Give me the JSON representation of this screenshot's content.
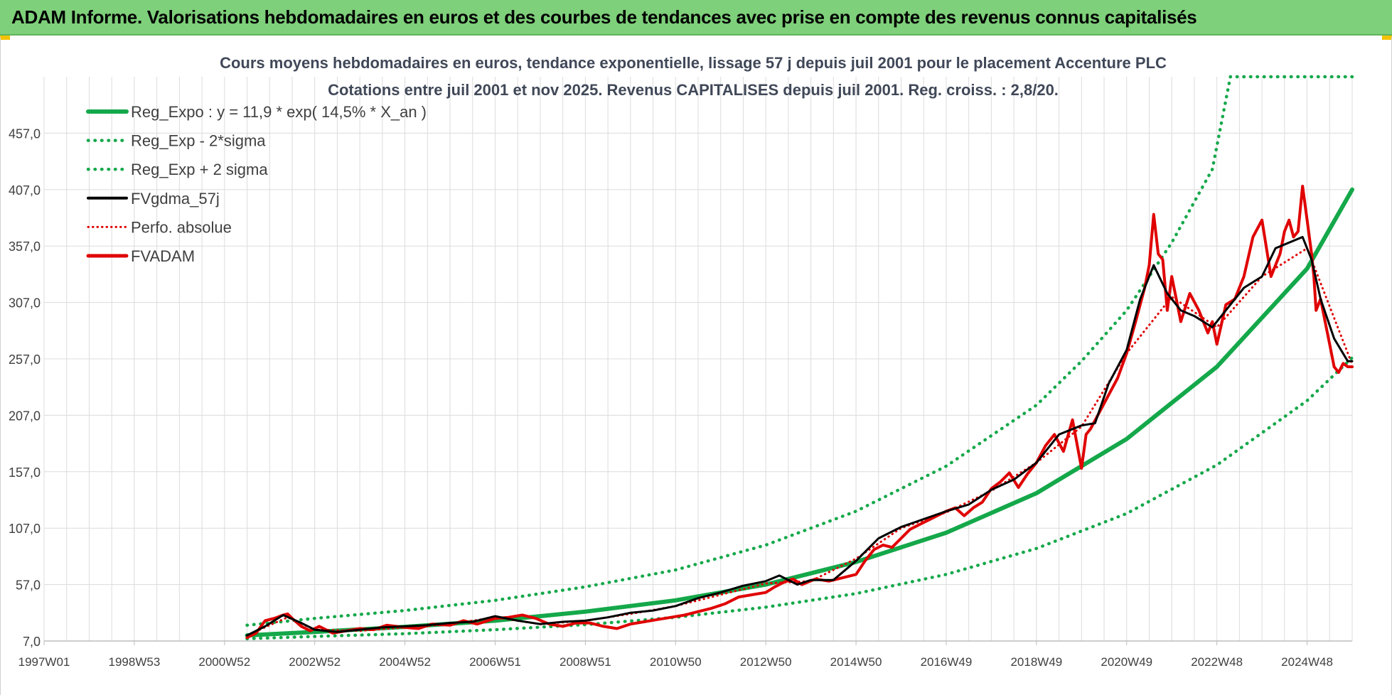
{
  "banner": {
    "title": "ADAM Informe. Valorisations hebdomadaires en euros et des courbes de tendances avec prise en compte des revenus connus capitalisés"
  },
  "colors": {
    "banner_bg": "#7ed07a",
    "trend": "#14a84a",
    "sigma": "#14a84a",
    "fvgdma": "#000000",
    "perfo": "#e00000",
    "fvadam": "#e00000",
    "grid": "#dcdcdc"
  },
  "chart_data": {
    "type": "line",
    "title": "Cours moyens hebdomadaires en euros, tendance exponentielle, lissage 57 j depuis juil 2001 pour le placement Accenture PLC",
    "subtitle": "Cotations entre juil 2001 et nov 2025. Revenus CAPITALISES depuis juil 2001. Reg. croiss. : 2,8/20.",
    "xlabel": "",
    "ylabel": "",
    "xlim": [
      1997.0,
      2026.0
    ],
    "ylim": [
      7.0,
      507.0
    ],
    "y_ticks": [
      "7,0",
      "57,0",
      "107,0",
      "157,0",
      "207,0",
      "257,0",
      "307,0",
      "357,0",
      "407,0",
      "457,0"
    ],
    "x_ticks": [
      {
        "label": "1997W01",
        "x": 1997.0
      },
      {
        "label": "1998W53",
        "x": 1999.0
      },
      {
        "label": "2000W52",
        "x": 2001.0
      },
      {
        "label": "2002W52",
        "x": 2003.0
      },
      {
        "label": "2004W52",
        "x": 2005.0
      },
      {
        "label": "2006W51",
        "x": 2007.0
      },
      {
        "label": "2008W51",
        "x": 2009.0
      },
      {
        "label": "2010W50",
        "x": 2011.0
      },
      {
        "label": "2012W50",
        "x": 2013.0
      },
      {
        "label": "2014W50",
        "x": 2015.0
      },
      {
        "label": "2016W49",
        "x": 2017.0
      },
      {
        "label": "2018W49",
        "x": 2019.0
      },
      {
        "label": "2020W49",
        "x": 2021.0
      },
      {
        "label": "2022W48",
        "x": 2023.0
      },
      {
        "label": "2024W48",
        "x": 2025.0
      }
    ],
    "legend": [
      {
        "key": "reg_expo",
        "label": "Reg_Expo : y = 11,9 * exp( 14,5% *  X_an )"
      },
      {
        "key": "reg_minus",
        "label": "Reg_Exp - 2*sigma"
      },
      {
        "key": "reg_plus",
        "label": "Reg_Exp + 2 sigma"
      },
      {
        "key": "fvgdma",
        "label": "FVgdma_57j"
      },
      {
        "key": "perfo",
        "label": "Perfo. absolue"
      },
      {
        "key": "fvadam",
        "label": "FVADAM"
      }
    ],
    "series": [
      {
        "name": "Reg_Expo",
        "style": "solid",
        "x": [
          2001.5,
          2003,
          2005,
          2007,
          2009,
          2011,
          2013,
          2015,
          2017,
          2019,
          2021,
          2023,
          2025,
          2026
        ],
        "y": [
          12,
          15,
          19.5,
          25,
          33,
          43,
          57,
          77,
          103,
          138,
          186,
          250,
          337,
          407
        ]
      },
      {
        "name": "Reg_Exp - 2*sigma",
        "style": "dotted",
        "x": [
          2001.5,
          2003,
          2005,
          2007,
          2009,
          2011,
          2013,
          2015,
          2017,
          2019,
          2021,
          2023,
          2025,
          2026
        ],
        "y": [
          9,
          11,
          13.5,
          17,
          21.5,
          28,
          37,
          49,
          66,
          89,
          120,
          163,
          220,
          258
        ]
      },
      {
        "name": "Reg_Exp + 2 sigma",
        "style": "dotted",
        "x": [
          2001.5,
          2003,
          2005,
          2007,
          2009,
          2011,
          2013,
          2015,
          2017,
          2019,
          2020,
          2021,
          2022,
          2022.9,
          2023.3,
          2026
        ],
        "y": [
          21,
          27,
          34,
          43,
          55,
          70,
          92,
          122,
          162,
          216,
          255,
          300,
          360,
          425,
          507,
          507
        ]
      },
      {
        "name": "FVgdma_57j",
        "style": "solid",
        "x": [
          2001.5,
          2001.9,
          2002.3,
          2002.7,
          2003.0,
          2003.5,
          2004.0,
          2004.5,
          2005.0,
          2005.5,
          2006.0,
          2006.5,
          2007.0,
          2007.5,
          2008.0,
          2008.5,
          2009.0,
          2009.5,
          2010.0,
          2010.5,
          2011.0,
          2011.5,
          2012.0,
          2012.5,
          2013.0,
          2013.3,
          2013.7,
          2014.0,
          2014.5,
          2015.0,
          2015.5,
          2016.0,
          2016.5,
          2017.0,
          2017.5,
          2018.0,
          2018.5,
          2019.0,
          2019.5,
          2020.0,
          2020.3,
          2020.6,
          2021.0,
          2021.3,
          2021.6,
          2021.9,
          2022.2,
          2022.5,
          2022.9,
          2023.2,
          2023.6,
          2024.0,
          2024.3,
          2024.6,
          2024.9,
          2025.1,
          2025.3,
          2025.6,
          2025.9,
          2026.0
        ],
        "y": [
          12,
          20,
          30,
          23,
          17,
          15,
          17,
          19,
          20,
          21,
          23,
          24,
          29,
          25,
          22,
          24,
          25,
          28,
          32,
          34,
          38,
          45,
          50,
          56,
          60,
          65,
          57,
          61,
          61,
          78,
          98,
          108,
          115,
          122,
          128,
          141,
          150,
          165,
          190,
          198,
          200,
          235,
          265,
          310,
          340,
          315,
          300,
          295,
          285,
          300,
          320,
          330,
          355,
          360,
          365,
          345,
          310,
          275,
          255,
          255
        ]
      },
      {
        "name": "Perfo. absolue",
        "style": "dotted",
        "x": [
          2001.5,
          2002.0,
          2002.4,
          2003.0,
          2004.0,
          2005.0,
          2006.0,
          2007.0,
          2008.0,
          2009.0,
          2010.0,
          2011.0,
          2012.0,
          2013.0,
          2014.0,
          2015.0,
          2016.0,
          2017.0,
          2018.0,
          2019.0,
          2020.0,
          2021.0,
          2022.0,
          2023.0,
          2024.0,
          2025.0,
          2026.0
        ],
        "y": [
          12,
          21,
          28,
          17,
          16,
          19,
          22,
          28,
          22,
          25,
          31,
          38,
          48,
          58,
          60,
          80,
          107,
          121,
          140,
          165,
          197,
          262,
          312,
          285,
          330,
          355,
          252
        ]
      },
      {
        "name": "FVADAM",
        "style": "solid",
        "x": [
          2001.5,
          2001.7,
          2001.9,
          2002.1,
          2002.3,
          2002.4,
          2002.5,
          2002.7,
          2002.9,
          2003.1,
          2003.4,
          2003.7,
          2004.0,
          2004.3,
          2004.6,
          2005.0,
          2005.3,
          2005.6,
          2006.0,
          2006.3,
          2006.6,
          2007.0,
          2007.3,
          2007.6,
          2007.9,
          2008.2,
          2008.5,
          2008.8,
          2009.1,
          2009.4,
          2009.7,
          2010.0,
          2010.3,
          2010.6,
          2010.9,
          2011.2,
          2011.5,
          2011.8,
          2012.1,
          2012.4,
          2012.7,
          2013.0,
          2013.2,
          2013.4,
          2013.6,
          2013.8,
          2014.1,
          2014.4,
          2014.7,
          2015.0,
          2015.2,
          2015.4,
          2015.6,
          2015.8,
          2016.0,
          2016.2,
          2016.4,
          2016.6,
          2016.8,
          2017.0,
          2017.2,
          2017.4,
          2017.6,
          2017.8,
          2018.0,
          2018.2,
          2018.4,
          2018.6,
          2018.8,
          2019.0,
          2019.2,
          2019.4,
          2019.6,
          2019.8,
          2020.0,
          2020.1,
          2020.2,
          2020.4,
          2020.6,
          2020.8,
          2021.0,
          2021.2,
          2021.4,
          2021.5,
          2021.6,
          2021.7,
          2021.8,
          2021.9,
          2022.0,
          2022.1,
          2022.2,
          2022.4,
          2022.6,
          2022.8,
          2022.9,
          2023.0,
          2023.2,
          2023.4,
          2023.6,
          2023.8,
          2024.0,
          2024.2,
          2024.4,
          2024.5,
          2024.6,
          2024.7,
          2024.8,
          2024.9,
          2025.0,
          2025.1,
          2025.15,
          2025.2,
          2025.3,
          2025.4,
          2025.5,
          2025.6,
          2025.7,
          2025.8,
          2025.9,
          2026.0
        ],
        "y": [
          10,
          14,
          25,
          27,
          30,
          31,
          27,
          20,
          16,
          20,
          14,
          16,
          18,
          17,
          21,
          19,
          18,
          22,
          21,
          25,
          22,
          27,
          28,
          30,
          27,
          22,
          20,
          23,
          23,
          20,
          18,
          22,
          24,
          26,
          28,
          30,
          33,
          36,
          40,
          46,
          48,
          50,
          55,
          59,
          62,
          57,
          62,
          60,
          63,
          66,
          78,
          88,
          92,
          90,
          98,
          106,
          110,
          114,
          118,
          122,
          125,
          118,
          125,
          130,
          142,
          148,
          156,
          143,
          155,
          165,
          180,
          190,
          175,
          203,
          160,
          190,
          195,
          210,
          225,
          240,
          262,
          290,
          320,
          340,
          385,
          350,
          345,
          300,
          330,
          310,
          290,
          315,
          300,
          280,
          290,
          270,
          305,
          310,
          330,
          365,
          380,
          330,
          350,
          370,
          380,
          365,
          370,
          410,
          380,
          350,
          330,
          300,
          310,
          290,
          270,
          250,
          245,
          253,
          250,
          250
        ]
      }
    ]
  }
}
